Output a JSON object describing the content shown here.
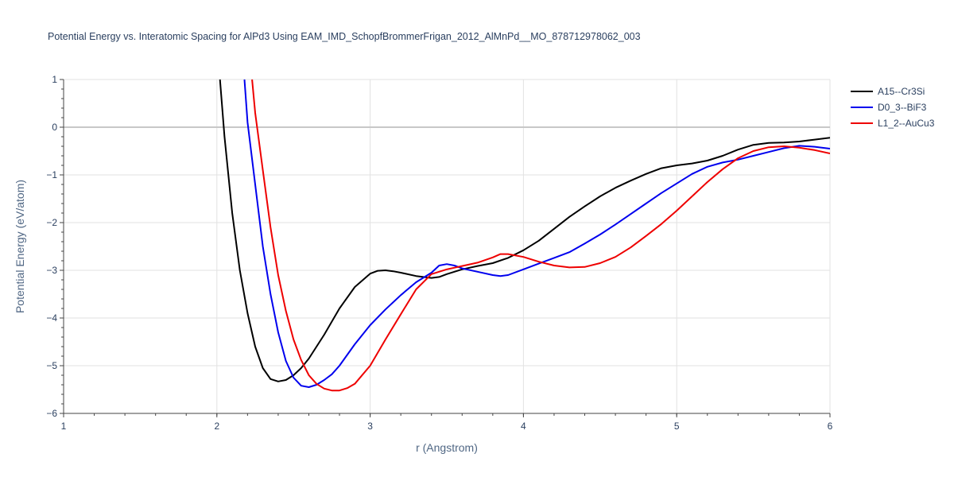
{
  "chart_data": {
    "type": "line",
    "title": "Potential Energy vs. Interatomic Spacing for AlPd3 Using EAM_IMD_SchopfBrommerFrigan_2012_AlMnPd__MO_878712978062_003",
    "xlabel": "r (Angstrom)",
    "ylabel": "Potential Energy (eV/atom)",
    "xlim": [
      1,
      6
    ],
    "ylim": [
      -6,
      1
    ],
    "xticks": [
      1,
      2,
      3,
      4,
      5,
      6
    ],
    "yticks": [
      1,
      0,
      -1,
      -2,
      -3,
      -4,
      -5,
      -6
    ],
    "ytick_labels": [
      "1",
      "0",
      "−1",
      "−2",
      "−3",
      "−4",
      "−5",
      "−6"
    ],
    "grid": true,
    "legend_position": "top-right",
    "series": [
      {
        "name": "A15--Cr3Si",
        "color": "#000000",
        "x": [
          2.02,
          2.05,
          2.1,
          2.15,
          2.2,
          2.25,
          2.3,
          2.35,
          2.4,
          2.45,
          2.5,
          2.55,
          2.6,
          2.7,
          2.8,
          2.9,
          3.0,
          3.05,
          3.1,
          3.15,
          3.2,
          3.3,
          3.4,
          3.45,
          3.5,
          3.6,
          3.7,
          3.8,
          3.9,
          4.0,
          4.1,
          4.2,
          4.3,
          4.4,
          4.5,
          4.6,
          4.7,
          4.8,
          4.9,
          5.0,
          5.1,
          5.2,
          5.3,
          5.4,
          5.5,
          5.6,
          5.7,
          5.8,
          5.9,
          6.0
        ],
        "y": [
          1.0,
          -0.2,
          -1.8,
          -3.0,
          -3.9,
          -4.6,
          -5.05,
          -5.28,
          -5.33,
          -5.3,
          -5.2,
          -5.05,
          -4.85,
          -4.35,
          -3.8,
          -3.35,
          -3.07,
          -3.01,
          -3.0,
          -3.02,
          -3.05,
          -3.12,
          -3.16,
          -3.14,
          -3.08,
          -2.98,
          -2.91,
          -2.85,
          -2.74,
          -2.58,
          -2.38,
          -2.13,
          -1.88,
          -1.66,
          -1.45,
          -1.27,
          -1.12,
          -0.98,
          -0.86,
          -0.8,
          -0.76,
          -0.7,
          -0.6,
          -0.47,
          -0.37,
          -0.33,
          -0.32,
          -0.3,
          -0.26,
          -0.22
        ]
      },
      {
        "name": "D0_3--BiF3",
        "color": "#0000ee",
        "x": [
          2.18,
          2.2,
          2.25,
          2.3,
          2.35,
          2.4,
          2.45,
          2.5,
          2.55,
          2.6,
          2.65,
          2.7,
          2.75,
          2.8,
          2.9,
          3.0,
          3.1,
          3.2,
          3.3,
          3.4,
          3.45,
          3.5,
          3.55,
          3.6,
          3.7,
          3.8,
          3.85,
          3.9,
          4.0,
          4.1,
          4.2,
          4.3,
          4.4,
          4.5,
          4.6,
          4.7,
          4.8,
          4.9,
          5.0,
          5.1,
          5.2,
          5.3,
          5.4,
          5.5,
          5.6,
          5.7,
          5.8,
          5.9,
          6.0
        ],
        "y": [
          1.0,
          0.1,
          -1.2,
          -2.5,
          -3.5,
          -4.3,
          -4.9,
          -5.25,
          -5.42,
          -5.45,
          -5.4,
          -5.3,
          -5.18,
          -5.0,
          -4.55,
          -4.15,
          -3.82,
          -3.52,
          -3.25,
          -3.05,
          -2.9,
          -2.87,
          -2.9,
          -2.96,
          -3.03,
          -3.1,
          -3.12,
          -3.1,
          -2.98,
          -2.86,
          -2.74,
          -2.62,
          -2.44,
          -2.25,
          -2.04,
          -1.82,
          -1.6,
          -1.38,
          -1.18,
          -0.98,
          -0.83,
          -0.74,
          -0.68,
          -0.6,
          -0.52,
          -0.44,
          -0.39,
          -0.41,
          -0.45
        ]
      },
      {
        "name": "L1_2--AuCu3",
        "color": "#ee0000",
        "x": [
          2.23,
          2.25,
          2.3,
          2.35,
          2.4,
          2.45,
          2.5,
          2.55,
          2.6,
          2.65,
          2.7,
          2.75,
          2.8,
          2.85,
          2.9,
          3.0,
          3.1,
          3.2,
          3.3,
          3.4,
          3.5,
          3.6,
          3.7,
          3.8,
          3.85,
          3.9,
          4.0,
          4.1,
          4.2,
          4.3,
          4.4,
          4.5,
          4.6,
          4.7,
          4.8,
          4.9,
          5.0,
          5.1,
          5.2,
          5.3,
          5.4,
          5.5,
          5.6,
          5.7,
          5.8,
          5.9,
          6.0
        ],
        "y": [
          1.0,
          0.3,
          -0.9,
          -2.1,
          -3.1,
          -3.85,
          -4.45,
          -4.88,
          -5.2,
          -5.38,
          -5.48,
          -5.52,
          -5.52,
          -5.47,
          -5.38,
          -5.0,
          -4.45,
          -3.92,
          -3.4,
          -3.08,
          -2.98,
          -2.91,
          -2.84,
          -2.73,
          -2.66,
          -2.66,
          -2.72,
          -2.82,
          -2.9,
          -2.94,
          -2.93,
          -2.85,
          -2.72,
          -2.52,
          -2.28,
          -2.03,
          -1.75,
          -1.45,
          -1.15,
          -0.88,
          -0.65,
          -0.5,
          -0.42,
          -0.4,
          -0.43,
          -0.48,
          -0.55
        ]
      }
    ]
  }
}
